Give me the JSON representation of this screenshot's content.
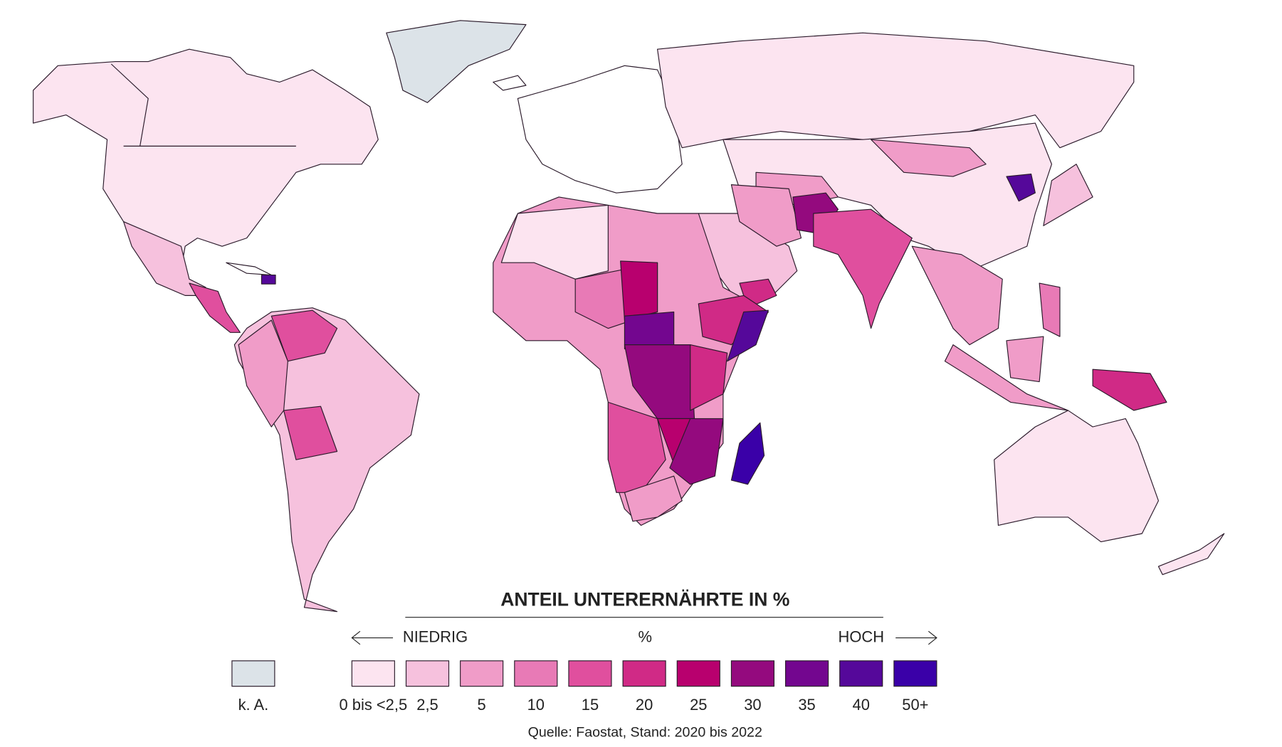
{
  "legend": {
    "title": "ANTEIL UNTERERNÄHRTE IN %",
    "low": "NIEDRIG",
    "unit": "%",
    "high": "HOCH",
    "items": [
      {
        "label": "k. A.",
        "color": "#dce3e8"
      },
      {
        "label": "0 bis <2,5",
        "color": "#fce4f0"
      },
      {
        "label": "2,5",
        "color": "#f6c1dd"
      },
      {
        "label": "5",
        "color": "#f09cc8"
      },
      {
        "label": "10",
        "color": "#e87ab6"
      },
      {
        "label": "15",
        "color": "#e04f9e"
      },
      {
        "label": "20",
        "color": "#d02a86"
      },
      {
        "label": "25",
        "color": "#b8006e"
      },
      {
        "label": "30",
        "color": "#940a7e"
      },
      {
        "label": "35",
        "color": "#73068f"
      },
      {
        "label": "40",
        "color": "#55089a"
      },
      {
        "label": "50+",
        "color": "#3a00a8"
      }
    ]
  },
  "source": "Quelle: Faostat, Stand: 2020 bis 2022"
}
